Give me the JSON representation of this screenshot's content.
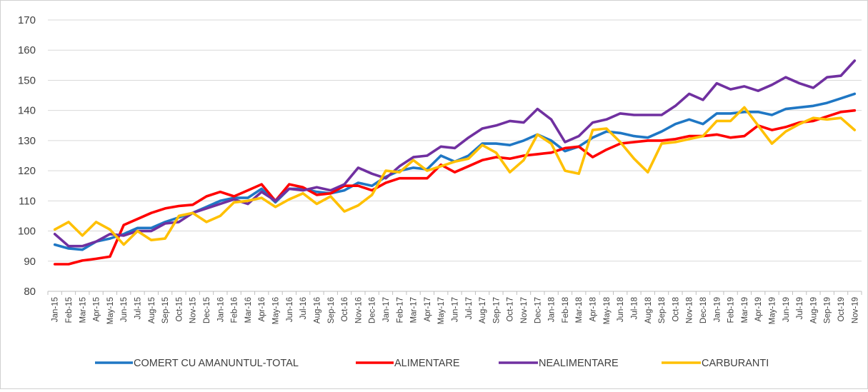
{
  "chart_data": {
    "type": "line",
    "title": "",
    "xlabel": "",
    "ylabel": "",
    "ylim": [
      80,
      170
    ],
    "yticks": [
      80,
      90,
      100,
      110,
      120,
      130,
      140,
      150,
      160,
      170
    ],
    "grid": true,
    "legend_position": "bottom",
    "categories": [
      "Jan-15",
      "Feb-15",
      "Mar-15",
      "Apr-15",
      "May-15",
      "Jun-15",
      "Jul-15",
      "Aug-15",
      "Sep-15",
      "Oct-15",
      "Nov-15",
      "Dec-15",
      "Jan-16",
      "Feb-16",
      "Mar-16",
      "Apr-16",
      "May-16",
      "Jun-16",
      "Jul-16",
      "Aug-16",
      "Sep-16",
      "Oct-16",
      "Nov-16",
      "Dec-16",
      "Jan-17",
      "Feb-17",
      "Mar-17",
      "Apr-17",
      "May-17",
      "Jun-17",
      "Jul-17",
      "Aug-17",
      "Sep-17",
      "Oct-17",
      "Nov-17",
      "Dec-17",
      "Jan-18",
      "Feb-18",
      "Mar-18",
      "Apr-18",
      "May-18",
      "Jun-18",
      "Jul-18",
      "Aug-18",
      "Sep-18",
      "Oct-18",
      "Nov-18",
      "Dec-18",
      "Jan-19",
      "Feb-19",
      "Mar-19",
      "Apr-19",
      "May-19",
      "Jun-19",
      "Jul-19",
      "Aug-19",
      "Sep-19",
      "Oct-19",
      "Nov-19"
    ],
    "series": [
      {
        "name": "COMERT CU AMANUNTUL-TOTAL",
        "color": "#1f77c4",
        "values": [
          95.5,
          94.2,
          93.8,
          96.5,
          97.5,
          99,
          101,
          101,
          103,
          104.5,
          106,
          108,
          110,
          111,
          111,
          114,
          109.5,
          114,
          114,
          113,
          112.5,
          113.5,
          116,
          115,
          118,
          120,
          121,
          120.5,
          125,
          123,
          125,
          129,
          129,
          128.5,
          130,
          132,
          130,
          126.5,
          128,
          131,
          133,
          132.5,
          131.5,
          131,
          133,
          135.5,
          137,
          135.5,
          139,
          139,
          139.5,
          139.5,
          138.5,
          140.5,
          141,
          141.5,
          142.5,
          144,
          145.5
        ]
      },
      {
        "name": "ALIMENTARE",
        "color": "#ff0000",
        "values": [
          89,
          89,
          90.2,
          90.8,
          91.5,
          102,
          104,
          106,
          107.5,
          108.3,
          108.7,
          111.5,
          113,
          111.5,
          113.5,
          115.5,
          110,
          115.5,
          114.5,
          112,
          112.5,
          115,
          115,
          113.5,
          116,
          117.5,
          117.5,
          117.5,
          122,
          119.5,
          121.5,
          123.5,
          124.5,
          124,
          125,
          125.5,
          126,
          127.5,
          128,
          124.5,
          127,
          129,
          129.5,
          130,
          130,
          130.5,
          131.5,
          131.5,
          132,
          131,
          131.5,
          135,
          133.5,
          134.5,
          136,
          136.5,
          138,
          139.5,
          140
        ]
      },
      {
        "name": "NEALIMENTARE",
        "color": "#7030a0",
        "values": [
          99,
          95,
          95,
          96.5,
          99,
          98.5,
          100,
          100,
          102.5,
          103,
          106,
          107.5,
          109,
          110.5,
          109,
          113,
          110,
          114,
          113.5,
          114.5,
          113.5,
          115.5,
          121,
          119,
          117.5,
          121.5,
          124.5,
          125,
          128,
          127.5,
          131,
          134,
          135,
          136.5,
          136,
          140.5,
          137,
          129.5,
          131.5,
          136,
          137,
          139,
          138.5,
          138.5,
          138.5,
          141.5,
          145.5,
          143.5,
          149,
          147,
          148,
          146.5,
          148.5,
          151,
          149,
          147.5,
          151,
          151.5,
          156.5
        ]
      },
      {
        "name": "CARBURANTI",
        "color": "#ffc000",
        "values": [
          100.5,
          103,
          98.5,
          103,
          100.5,
          95.5,
          100,
          97,
          97.5,
          105,
          106,
          103,
          105,
          109.5,
          110,
          111,
          108,
          110.5,
          112.5,
          109,
          111.5,
          106.5,
          108.5,
          112,
          120,
          119.5,
          123.5,
          120,
          121.5,
          123,
          124,
          128.5,
          126,
          119.5,
          123.5,
          132,
          129,
          120,
          119,
          133.5,
          134,
          129.5,
          124,
          119.5,
          129,
          129.5,
          130.5,
          131.5,
          136.5,
          136.5,
          141,
          135,
          129,
          133,
          135.5,
          137.5,
          137,
          137.5,
          133.5
        ]
      }
    ]
  }
}
